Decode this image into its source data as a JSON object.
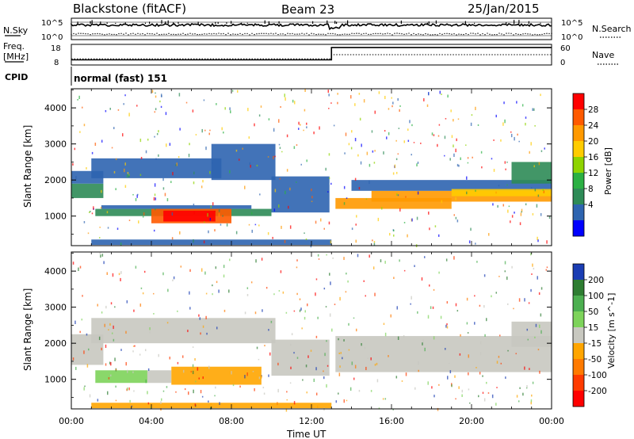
{
  "header": {
    "station": "Blackstone (fitACF)",
    "beam": "Beam 23",
    "date": "25/Jan/2015"
  },
  "summary_panels": {
    "nsky_label": "N.Sky",
    "nsearch_label": "N.Search",
    "freq_label_line1": "Freq.",
    "freq_label_line2": "[MHz]",
    "nave_label": "Nave",
    "cpid_label": "CPID",
    "cpid_text": "normal (fast) 151",
    "count_ticks": [
      "10^5",
      "10^0"
    ],
    "freq_ticks": [
      "18",
      "8"
    ],
    "nave_ticks": [
      "60",
      "0"
    ],
    "freq_values": {
      "before": 10.5,
      "after": 16.5,
      "switch_hour": 13.0
    },
    "nave_values": {
      "before": 18,
      "after": 30
    }
  },
  "chart_data": [
    {
      "type": "heatmap",
      "name_panel": "power",
      "ylabel": "Slant Range [km]",
      "ylim": [
        180,
        4530
      ],
      "yticks": [
        1000,
        2000,
        3000,
        4000
      ],
      "xlim": [
        0,
        24
      ],
      "colorbar": {
        "label": "Power [dB]",
        "tick_labels": [
          "28",
          "24",
          "20",
          "16",
          "12",
          "8",
          "4"
        ],
        "colors": [
          "#ff0000",
          "#ff5a00",
          "#ff9900",
          "#ffcc00",
          "#8fd400",
          "#2bb043",
          "#2e8b57",
          "#2e64b0",
          "#0000ff"
        ]
      },
      "bands": [
        {
          "t0": 0.0,
          "t1": 1.6,
          "r0": 1500,
          "r1": 1900,
          "color": "#2e8b57"
        },
        {
          "t0": 0.0,
          "t1": 1.6,
          "r0": 1900,
          "r1": 2250,
          "color": "#2e64b0"
        },
        {
          "t0": 1.0,
          "t1": 7.5,
          "r0": 2050,
          "r1": 2600,
          "color": "#2e64b0"
        },
        {
          "t0": 7.0,
          "t1": 10.2,
          "r0": 2000,
          "r1": 3000,
          "color": "#2e64b0"
        },
        {
          "t0": 1.2,
          "t1": 10.0,
          "r0": 1000,
          "r1": 1200,
          "color": "#2e8b57"
        },
        {
          "t0": 1.5,
          "t1": 9.0,
          "r0": 1200,
          "r1": 1300,
          "color": "#2e64b0"
        },
        {
          "t0": 4.0,
          "t1": 8.0,
          "r0": 800,
          "r1": 1200,
          "color": "#ff5a00"
        },
        {
          "t0": 4.6,
          "t1": 7.2,
          "r0": 850,
          "r1": 1150,
          "color": "#ff0000"
        },
        {
          "t0": 10.0,
          "t1": 12.9,
          "r0": 1100,
          "r1": 2100,
          "color": "#2e64b0"
        },
        {
          "t0": 13.2,
          "t1": 19.0,
          "r0": 1200,
          "r1": 1500,
          "color": "#ff9900"
        },
        {
          "t0": 15.0,
          "t1": 24.0,
          "r0": 1400,
          "r1": 1700,
          "color": "#ff9900"
        },
        {
          "t0": 14.0,
          "t1": 24.0,
          "r0": 1700,
          "r1": 2000,
          "color": "#2e64b0"
        },
        {
          "t0": 19.0,
          "t1": 24.0,
          "r0": 1550,
          "r1": 1750,
          "color": "#ffcc00"
        },
        {
          "t0": 22.0,
          "t1": 24.0,
          "r0": 1900,
          "r1": 2500,
          "color": "#2e8b57"
        },
        {
          "t0": 1.0,
          "t1": 13.0,
          "r0": 200,
          "r1": 350,
          "color": "#2e64b0"
        }
      ]
    },
    {
      "type": "heatmap",
      "name_panel": "velocity",
      "ylabel": "Slant Range [km]",
      "ylim": [
        180,
        4530
      ],
      "yticks": [
        1000,
        2000,
        3000,
        4000
      ],
      "xlim": [
        0,
        24
      ],
      "xlabel": "Time UT",
      "xtick_labels": [
        "00:00",
        "04:00",
        "08:00",
        "12:00",
        "16:00",
        "20:00",
        "00:00"
      ],
      "xtick_hours": [
        0,
        4,
        8,
        12,
        16,
        20,
        24
      ],
      "colorbar": {
        "label": "Velocity [m s^-1]",
        "tick_labels": [
          "200",
          "100",
          "50",
          "15",
          "-15",
          "-50",
          "-100",
          "-200"
        ],
        "colors": [
          "#1a3db3",
          "#2e7d32",
          "#4caf50",
          "#7dd35a",
          "#c8c8c0",
          "#ffa500",
          "#ff7a00",
          "#ff3b00",
          "#ff0000"
        ]
      },
      "bands": [
        {
          "t0": 0.0,
          "t1": 1.6,
          "r0": 1400,
          "r1": 2250,
          "color": "#c8c8c0"
        },
        {
          "t0": 1.0,
          "t1": 10.2,
          "r0": 2000,
          "r1": 2700,
          "color": "#c8c8c0"
        },
        {
          "t0": 1.2,
          "t1": 3.8,
          "r0": 900,
          "r1": 1250,
          "color": "#7dd35a"
        },
        {
          "t0": 3.8,
          "t1": 5.0,
          "r0": 900,
          "r1": 1250,
          "color": "#c8c8c0"
        },
        {
          "t0": 5.0,
          "t1": 9.5,
          "r0": 850,
          "r1": 1350,
          "color": "#ffa500"
        },
        {
          "t0": 10.0,
          "t1": 12.9,
          "r0": 1100,
          "r1": 2100,
          "color": "#c8c8c0"
        },
        {
          "t0": 13.2,
          "t1": 24.0,
          "r0": 1200,
          "r1": 2200,
          "color": "#c8c8c0"
        },
        {
          "t0": 22.0,
          "t1": 24.0,
          "r0": 1900,
          "r1": 2600,
          "color": "#c8c8c0"
        },
        {
          "t0": 1.0,
          "t1": 13.0,
          "r0": 200,
          "r1": 350,
          "color": "#ffa500"
        }
      ]
    }
  ]
}
